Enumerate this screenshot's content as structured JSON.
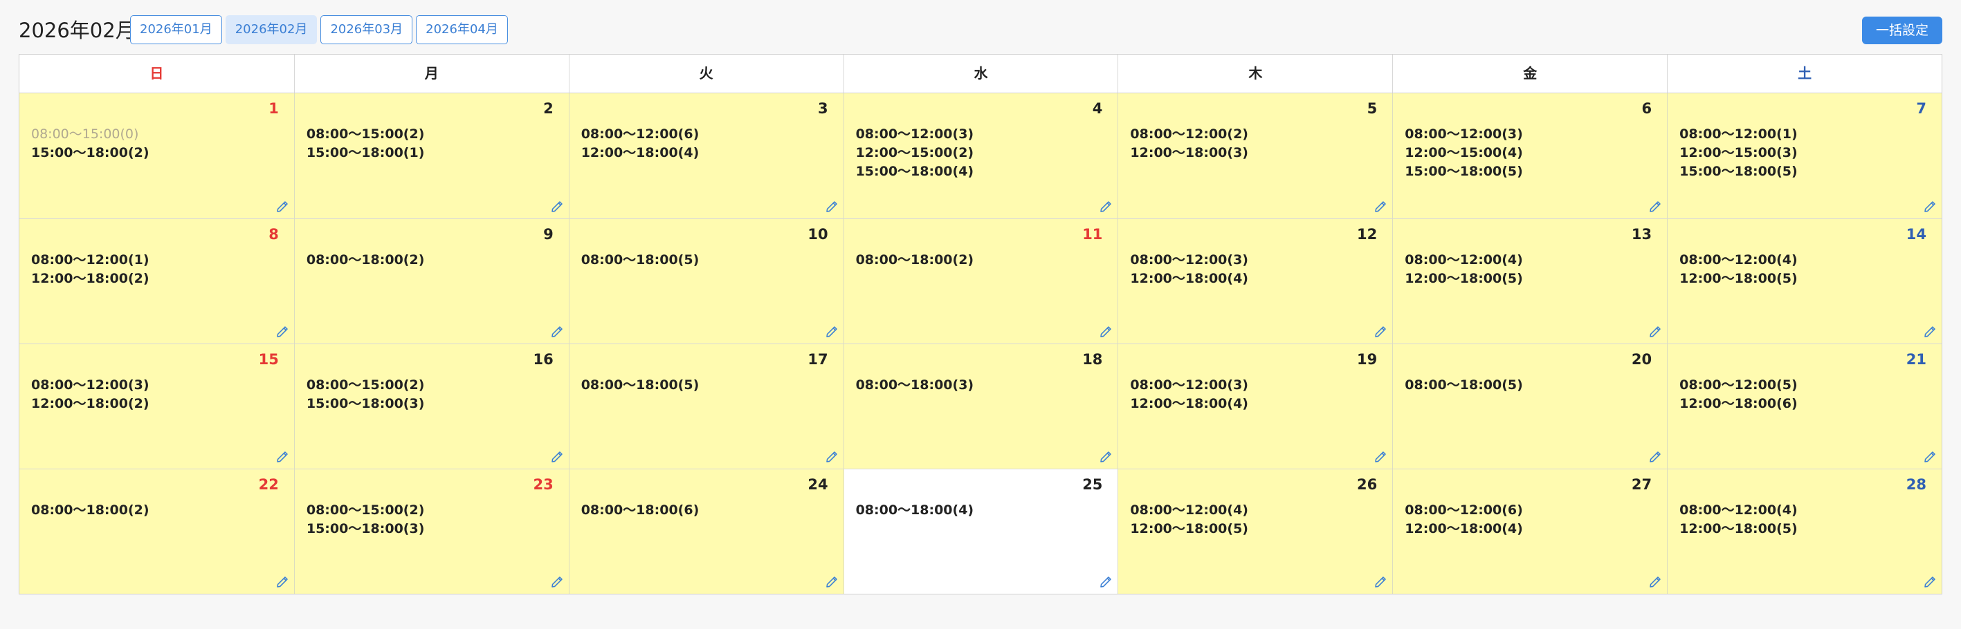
{
  "header": {
    "title": "2026年02月",
    "month_tabs": [
      {
        "label": "2026年01月",
        "active": false
      },
      {
        "label": "2026年02月",
        "active": true
      },
      {
        "label": "2026年03月",
        "active": false
      },
      {
        "label": "2026年04月",
        "active": false
      }
    ],
    "bulk_button": "一括設定"
  },
  "colors": {
    "accent": "#3b8ae6",
    "cell_bg": "#fffbb0",
    "sunday_holiday": "#e53935",
    "saturday": "#2f5fb3"
  },
  "calendar": {
    "weekdays": [
      "日",
      "月",
      "火",
      "水",
      "木",
      "金",
      "土"
    ],
    "days": [
      {
        "day": "1",
        "color": "red",
        "slots": [
          {
            "text": "08:00〜15:00(0)",
            "muted": true
          },
          {
            "text": "15:00〜18:00(2)"
          }
        ]
      },
      {
        "day": "2",
        "slots": [
          {
            "text": "08:00〜15:00(2)"
          },
          {
            "text": "15:00〜18:00(1)"
          }
        ]
      },
      {
        "day": "3",
        "slots": [
          {
            "text": "08:00〜12:00(6)"
          },
          {
            "text": "12:00〜18:00(4)"
          }
        ]
      },
      {
        "day": "4",
        "slots": [
          {
            "text": "08:00〜12:00(3)"
          },
          {
            "text": "12:00〜15:00(2)"
          },
          {
            "text": "15:00〜18:00(4)"
          }
        ]
      },
      {
        "day": "5",
        "slots": [
          {
            "text": "08:00〜12:00(2)"
          },
          {
            "text": "12:00〜18:00(3)"
          }
        ]
      },
      {
        "day": "6",
        "slots": [
          {
            "text": "08:00〜12:00(3)"
          },
          {
            "text": "12:00〜15:00(4)"
          },
          {
            "text": "15:00〜18:00(5)"
          }
        ]
      },
      {
        "day": "7",
        "color": "blue",
        "slots": [
          {
            "text": "08:00〜12:00(1)"
          },
          {
            "text": "12:00〜15:00(3)"
          },
          {
            "text": "15:00〜18:00(5)"
          }
        ]
      },
      {
        "day": "8",
        "color": "red",
        "slots": [
          {
            "text": "08:00〜12:00(1)"
          },
          {
            "text": "12:00〜18:00(2)"
          }
        ]
      },
      {
        "day": "9",
        "slots": [
          {
            "text": "08:00〜18:00(2)"
          }
        ]
      },
      {
        "day": "10",
        "slots": [
          {
            "text": "08:00〜18:00(5)"
          }
        ]
      },
      {
        "day": "11",
        "color": "red",
        "slots": [
          {
            "text": "08:00〜18:00(2)"
          }
        ]
      },
      {
        "day": "12",
        "slots": [
          {
            "text": "08:00〜12:00(3)"
          },
          {
            "text": "12:00〜18:00(4)"
          }
        ]
      },
      {
        "day": "13",
        "slots": [
          {
            "text": "08:00〜12:00(4)"
          },
          {
            "text": "12:00〜18:00(5)"
          }
        ]
      },
      {
        "day": "14",
        "color": "blue",
        "slots": [
          {
            "text": "08:00〜12:00(4)"
          },
          {
            "text": "12:00〜18:00(5)"
          }
        ]
      },
      {
        "day": "15",
        "color": "red",
        "slots": [
          {
            "text": "08:00〜12:00(3)"
          },
          {
            "text": "12:00〜18:00(2)"
          }
        ]
      },
      {
        "day": "16",
        "slots": [
          {
            "text": "08:00〜15:00(2)"
          },
          {
            "text": "15:00〜18:00(3)"
          }
        ]
      },
      {
        "day": "17",
        "slots": [
          {
            "text": "08:00〜18:00(5)"
          }
        ]
      },
      {
        "day": "18",
        "slots": [
          {
            "text": "08:00〜18:00(3)"
          }
        ]
      },
      {
        "day": "19",
        "slots": [
          {
            "text": "08:00〜12:00(3)"
          },
          {
            "text": "12:00〜18:00(4)"
          }
        ]
      },
      {
        "day": "20",
        "slots": [
          {
            "text": "08:00〜18:00(5)"
          }
        ]
      },
      {
        "day": "21",
        "color": "blue",
        "slots": [
          {
            "text": "08:00〜12:00(5)"
          },
          {
            "text": "12:00〜18:00(6)"
          }
        ]
      },
      {
        "day": "22",
        "color": "red",
        "slots": [
          {
            "text": "08:00〜18:00(2)"
          }
        ]
      },
      {
        "day": "23",
        "color": "red",
        "slots": [
          {
            "text": "08:00〜15:00(2)"
          },
          {
            "text": "15:00〜18:00(3)"
          }
        ]
      },
      {
        "day": "24",
        "slots": [
          {
            "text": "08:00〜18:00(6)"
          }
        ]
      },
      {
        "day": "25",
        "highlight": false,
        "slots": [
          {
            "text": "08:00〜18:00(4)"
          }
        ]
      },
      {
        "day": "26",
        "slots": [
          {
            "text": "08:00〜12:00(4)"
          },
          {
            "text": "12:00〜18:00(5)"
          }
        ]
      },
      {
        "day": "27",
        "slots": [
          {
            "text": "08:00〜12:00(6)"
          },
          {
            "text": "12:00〜18:00(4)"
          }
        ]
      },
      {
        "day": "28",
        "color": "blue",
        "slots": [
          {
            "text": "08:00〜12:00(4)"
          },
          {
            "text": "12:00〜18:00(5)"
          }
        ]
      }
    ]
  }
}
